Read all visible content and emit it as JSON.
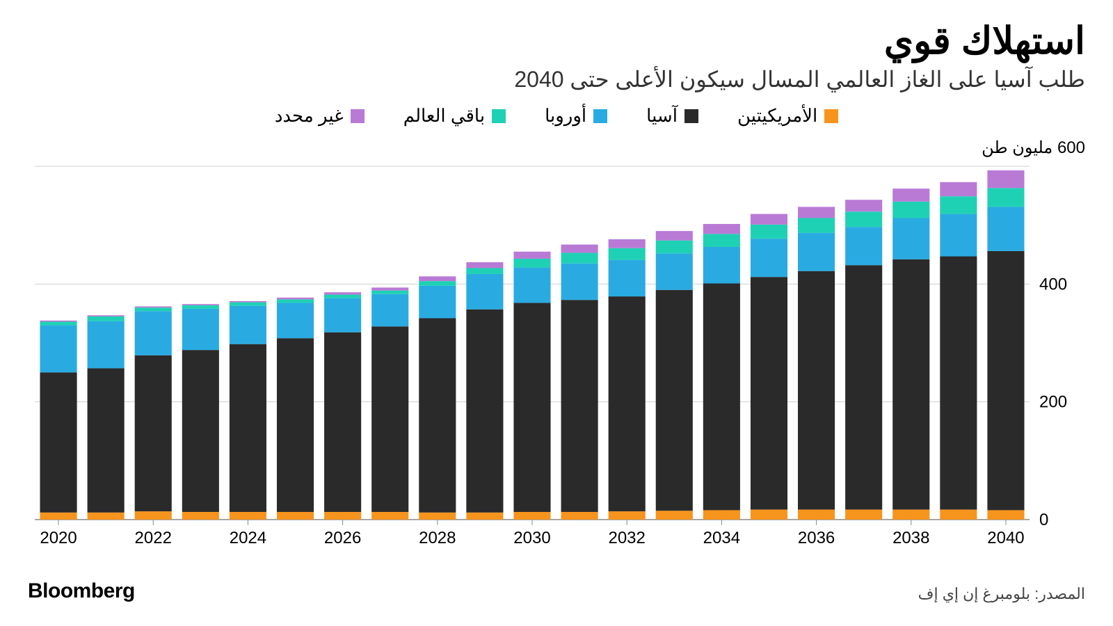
{
  "chart": {
    "type": "stacked-bar",
    "title": "استهلاك قوي",
    "subtitle": "طلب آسيا على الغاز العالمي المسال سيكون الأعلى حتى 2040",
    "yaxis_title_text": "مليون طن",
    "yaxis_title_first_tick": "600",
    "brand": "Bloomberg",
    "source": "المصدر: بلومبرغ إن إي إف",
    "legend": [
      {
        "key": "americas",
        "label": "الأمريكيتين",
        "color": "#f7941d"
      },
      {
        "key": "asia",
        "label": "آسيا",
        "color": "#2a2a2a"
      },
      {
        "key": "europe",
        "label": "أوروبا",
        "color": "#29abe2"
      },
      {
        "key": "rest",
        "label": "باقي العالم",
        "color": "#1fd1b4"
      },
      {
        "key": "unspecified",
        "label": "غير محدد",
        "color": "#b97ad6"
      }
    ],
    "stack_order": [
      "americas",
      "asia",
      "europe",
      "rest",
      "unspecified"
    ],
    "years": [
      2020,
      2021,
      2022,
      2023,
      2024,
      2025,
      2026,
      2027,
      2028,
      2029,
      2030,
      2031,
      2032,
      2033,
      2034,
      2035,
      2036,
      2037,
      2038,
      2039,
      2040
    ],
    "series": {
      "americas": [
        12,
        12,
        14,
        13,
        13,
        13,
        13,
        13,
        12,
        12,
        13,
        13,
        14,
        15,
        16,
        17,
        17,
        17,
        17,
        17,
        16
      ],
      "asia": [
        238,
        245,
        265,
        275,
        285,
        295,
        305,
        315,
        330,
        345,
        355,
        360,
        365,
        375,
        385,
        395,
        405,
        415,
        425,
        430,
        440
      ],
      "europe": [
        80,
        80,
        75,
        70,
        65,
        60,
        58,
        55,
        55,
        60,
        60,
        62,
        62,
        62,
        62,
        65,
        65,
        65,
        70,
        72,
        75
      ],
      "rest": [
        6,
        8,
        6,
        6,
        6,
        6,
        6,
        6,
        8,
        10,
        15,
        18,
        20,
        22,
        22,
        24,
        25,
        26,
        28,
        30,
        32
      ],
      "unspecified": [
        2,
        2,
        2,
        2,
        2,
        3,
        4,
        5,
        8,
        10,
        12,
        14,
        15,
        16,
        17,
        18,
        19,
        20,
        22,
        24,
        30
      ]
    },
    "ylim": [
      0,
      600
    ],
    "yticks": [
      0,
      200,
      400,
      600
    ],
    "ytick_labels": [
      "0",
      "200",
      "400",
      "600"
    ],
    "xtick_years": [
      2020,
      2022,
      2024,
      2026,
      2028,
      2030,
      2032,
      2034,
      2036,
      2038,
      2040
    ],
    "grid_color": "#cfcfcf",
    "baseline_color": "#888888",
    "baseline_width": 1,
    "bar_width_ratio": 0.78,
    "background_color": "#ffffff",
    "axis_font_size": 24,
    "tick_font_size": 24
  }
}
